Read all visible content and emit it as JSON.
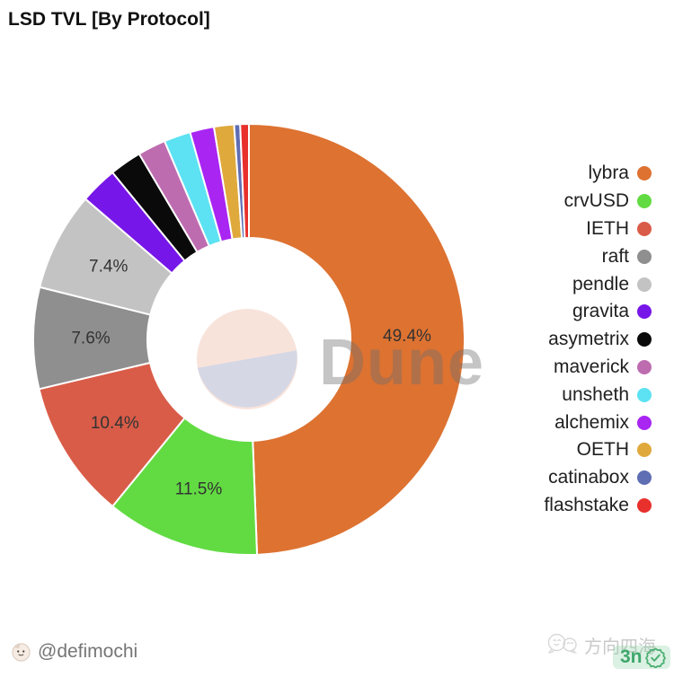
{
  "header": {
    "title": "LSD TVL [By Protocol]"
  },
  "chart_data": {
    "type": "pie",
    "title": "LSD TVL [By Protocol]",
    "legend_position": "right",
    "donut_hole_ratio": 0.47,
    "start_angle_deg": 0,
    "direction": "clockwise",
    "series": [
      {
        "name": "lybra",
        "value": 49.4,
        "color": "#DD7231",
        "label": "49.4%"
      },
      {
        "name": "crvUSD",
        "value": 11.5,
        "color": "#62DB42",
        "label": "11.5%"
      },
      {
        "name": "IETH",
        "value": 10.4,
        "color": "#D95C48",
        "label": "10.4%"
      },
      {
        "name": "raft",
        "value": 7.6,
        "color": "#8F8F8F",
        "label": "7.6%"
      },
      {
        "name": "pendle",
        "value": 7.4,
        "color": "#C3C3C3",
        "label": "7.4%"
      },
      {
        "name": "gravita",
        "value": 2.8,
        "color": "#7716E8",
        "label": null
      },
      {
        "name": "asymetrix",
        "value": 2.4,
        "color": "#0A0A0A",
        "label": null
      },
      {
        "name": "maverick",
        "value": 2.1,
        "color": "#BE6CB0",
        "label": null
      },
      {
        "name": "unsheth",
        "value": 2.0,
        "color": "#5CE2F2",
        "label": null
      },
      {
        "name": "alchemix",
        "value": 1.8,
        "color": "#A825F2",
        "label": null
      },
      {
        "name": "OETH",
        "value": 1.5,
        "color": "#DFA93C",
        "label": null
      },
      {
        "name": "catinabox",
        "value": 0.45,
        "color": "#5F6DB3",
        "label": null
      },
      {
        "name": "flashstake",
        "value": 0.65,
        "color": "#E8302C",
        "label": null
      }
    ]
  },
  "watermark": {
    "brand": "Dune",
    "logo_top_color": "#F8E3DB",
    "logo_bottom_color": "#D5D7E5"
  },
  "footer": {
    "author_handle": "@defimochi",
    "channel_name": "方向四海",
    "badge_text": "3n",
    "badge_color": "#3FA76C"
  }
}
